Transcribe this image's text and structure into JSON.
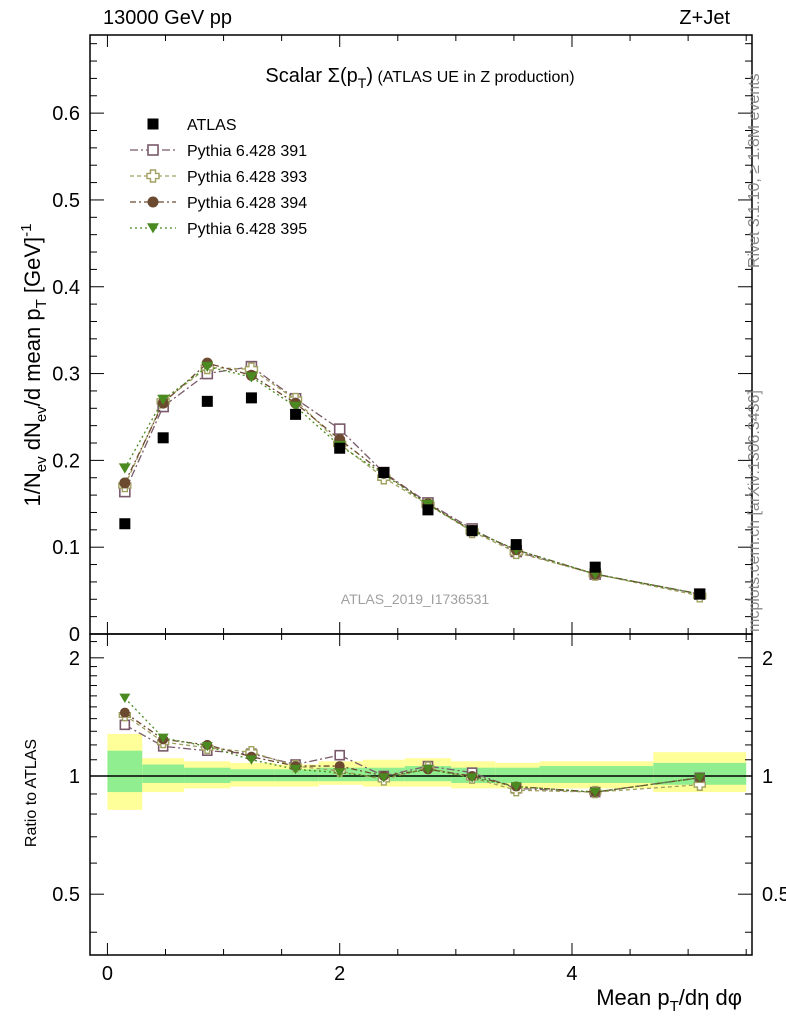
{
  "header": {
    "left": "13000 GeV pp",
    "right": "Z+Jet"
  },
  "side_labels": {
    "rivet": "Rivet 3.1.10, ≥ 1.8M events",
    "mcplots": "mcplots.cern.ch [arXiv:1306.3436]"
  },
  "chart_data": {
    "type": "scatter",
    "title": "Scalar Σ(p_T) (ATLAS UE in Z production)",
    "watermark": "ATLAS_2019_I1736531",
    "xlabel": "Mean p_T/dη dφ",
    "ylabel": "1/N_ev dN_ev/d mean p_T [GeV]^-1",
    "ratio_ylabel": "Ratio to ATLAS",
    "xlim": [
      -0.15,
      5.55
    ],
    "ylim": [
      0,
      0.69
    ],
    "ratio_ylim": [
      0.35,
      2.3
    ],
    "ratio_log": true,
    "x_ticks": [
      "0",
      "2",
      "4"
    ],
    "y_ticks": [
      "0.1",
      "0.2",
      "0.3",
      "0.4",
      "0.5",
      "0.6"
    ],
    "y_zero_label": "0",
    "ratio_ticks": [
      "0.5",
      "1",
      "2"
    ],
    "legend_position": "top-left",
    "x": [
      0.15,
      0.48,
      0.86,
      1.24,
      1.62,
      2.0,
      2.38,
      2.76,
      3.14,
      3.52,
      4.2,
      5.1
    ],
    "data": {
      "name": "ATLAS",
      "values": [
        0.127,
        0.226,
        0.268,
        0.272,
        0.253,
        0.214,
        0.186,
        0.143,
        0.119,
        0.103,
        0.077,
        0.046
      ]
    },
    "series": [
      {
        "name": "Pythia 6.428 391",
        "color": "#7a5a6a",
        "marker": "square-open",
        "dash": "8,3,2,3",
        "values": [
          0.164,
          0.262,
          0.3,
          0.308,
          0.271,
          0.236,
          0.186,
          0.151,
          0.121,
          0.095,
          0.069,
          0.046
        ]
      },
      {
        "name": "Pythia 6.428 393",
        "color": "#a0a060",
        "marker": "cross-open",
        "dash": "4,3",
        "values": [
          0.171,
          0.268,
          0.307,
          0.305,
          0.27,
          0.219,
          0.18,
          0.149,
          0.118,
          0.094,
          0.069,
          0.044
        ]
      },
      {
        "name": "Pythia 6.428 394",
        "color": "#6b4a30",
        "marker": "circle",
        "dash": "6,3,2,3",
        "values": [
          0.174,
          0.266,
          0.312,
          0.298,
          0.266,
          0.224,
          0.185,
          0.15,
          0.119,
          0.097,
          0.069,
          0.046
        ]
      },
      {
        "name": "Pythia 6.428 395",
        "color": "#4a8a20",
        "marker": "triangle-down",
        "dash": "2,3",
        "values": [
          0.191,
          0.27,
          0.308,
          0.296,
          0.262,
          0.217,
          0.184,
          0.149,
          0.119,
          0.097,
          0.069,
          0.046
        ]
      }
    ],
    "ratio_series": [
      [
        1.35,
        1.19,
        1.16,
        1.14,
        1.07,
        1.13,
        1.0,
        1.06,
        1.02,
        0.93,
        0.91,
        0.99
      ],
      [
        1.43,
        1.22,
        1.18,
        1.15,
        1.06,
        1.03,
        0.98,
        1.05,
        0.99,
        0.92,
        0.91,
        0.95
      ],
      [
        1.45,
        1.24,
        1.2,
        1.12,
        1.06,
        1.06,
        1.0,
        1.04,
        1.0,
        0.94,
        0.91,
        0.99
      ],
      [
        1.58,
        1.25,
        1.19,
        1.1,
        1.04,
        1.02,
        0.99,
        1.04,
        0.99,
        0.94,
        0.91,
        0.99
      ]
    ],
    "bands": {
      "edges": [
        0.0,
        0.3,
        0.66,
        1.06,
        1.44,
        1.82,
        2.2,
        2.56,
        2.96,
        3.34,
        3.72,
        4.7,
        5.5
      ],
      "outer_lo": [
        0.82,
        0.91,
        0.93,
        0.94,
        0.94,
        0.95,
        0.94,
        0.94,
        0.93,
        0.93,
        0.93,
        0.91
      ],
      "outer_hi": [
        1.28,
        1.11,
        1.09,
        1.08,
        1.07,
        1.09,
        1.1,
        1.11,
        1.09,
        1.08,
        1.09,
        1.15
      ],
      "inner_lo": [
        0.91,
        0.96,
        0.96,
        0.97,
        0.97,
        0.97,
        0.97,
        0.97,
        0.96,
        0.96,
        0.96,
        0.95
      ],
      "inner_hi": [
        1.16,
        1.07,
        1.05,
        1.04,
        1.04,
        1.05,
        1.05,
        1.06,
        1.05,
        1.05,
        1.06,
        1.08
      ],
      "outer_color": "#ffff99",
      "inner_color": "#90ee90"
    }
  }
}
